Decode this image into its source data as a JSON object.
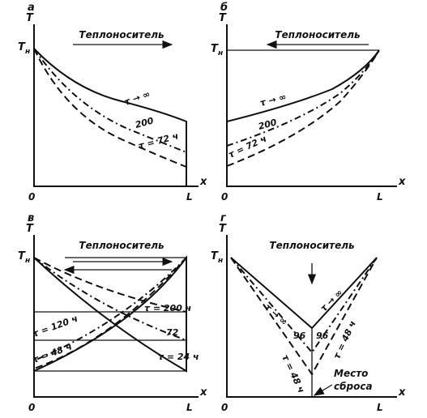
{
  "panels": [
    {
      "letter": "а",
      "axis_y": "T",
      "axis_x": "x",
      "t_main": "T",
      "t_sub": "н",
      "origin": "0",
      "end": "L",
      "flow": "Теплоноситель",
      "curve_labels": [
        "τ → ∞",
        "200",
        "τ = 72 ч"
      ]
    },
    {
      "letter": "б",
      "axis_y": "T",
      "axis_x": "x",
      "t_main": "T",
      "t_sub": "н",
      "origin": "0",
      "end": "L",
      "flow": "Теплоноситель",
      "curve_labels": [
        "τ → ∞",
        "200",
        "τ = 72 ч"
      ]
    },
    {
      "letter": "в",
      "axis_y": "T",
      "axis_x": "x",
      "t_main": "T",
      "t_sub": "н",
      "origin": "0",
      "end": "L",
      "flow": "Теплоноситель",
      "curve_labels": [
        "τ = 200 ч",
        "72",
        "τ = 120 ч",
        "τ = 48 ч",
        "τ = 24 ч"
      ]
    },
    {
      "letter": "г",
      "axis_y": "T",
      "axis_x": "x",
      "t_main": "T",
      "t_sub": "н",
      "origin": "0",
      "end": "L",
      "flow": "Теплоноситель",
      "curve_labels": [
        "τ → ∞",
        "τ → ∞",
        "96",
        "96",
        "τ = 48 ч",
        "τ = 48 ч"
      ],
      "outlet": [
        "Место",
        "сброса"
      ]
    }
  ]
}
